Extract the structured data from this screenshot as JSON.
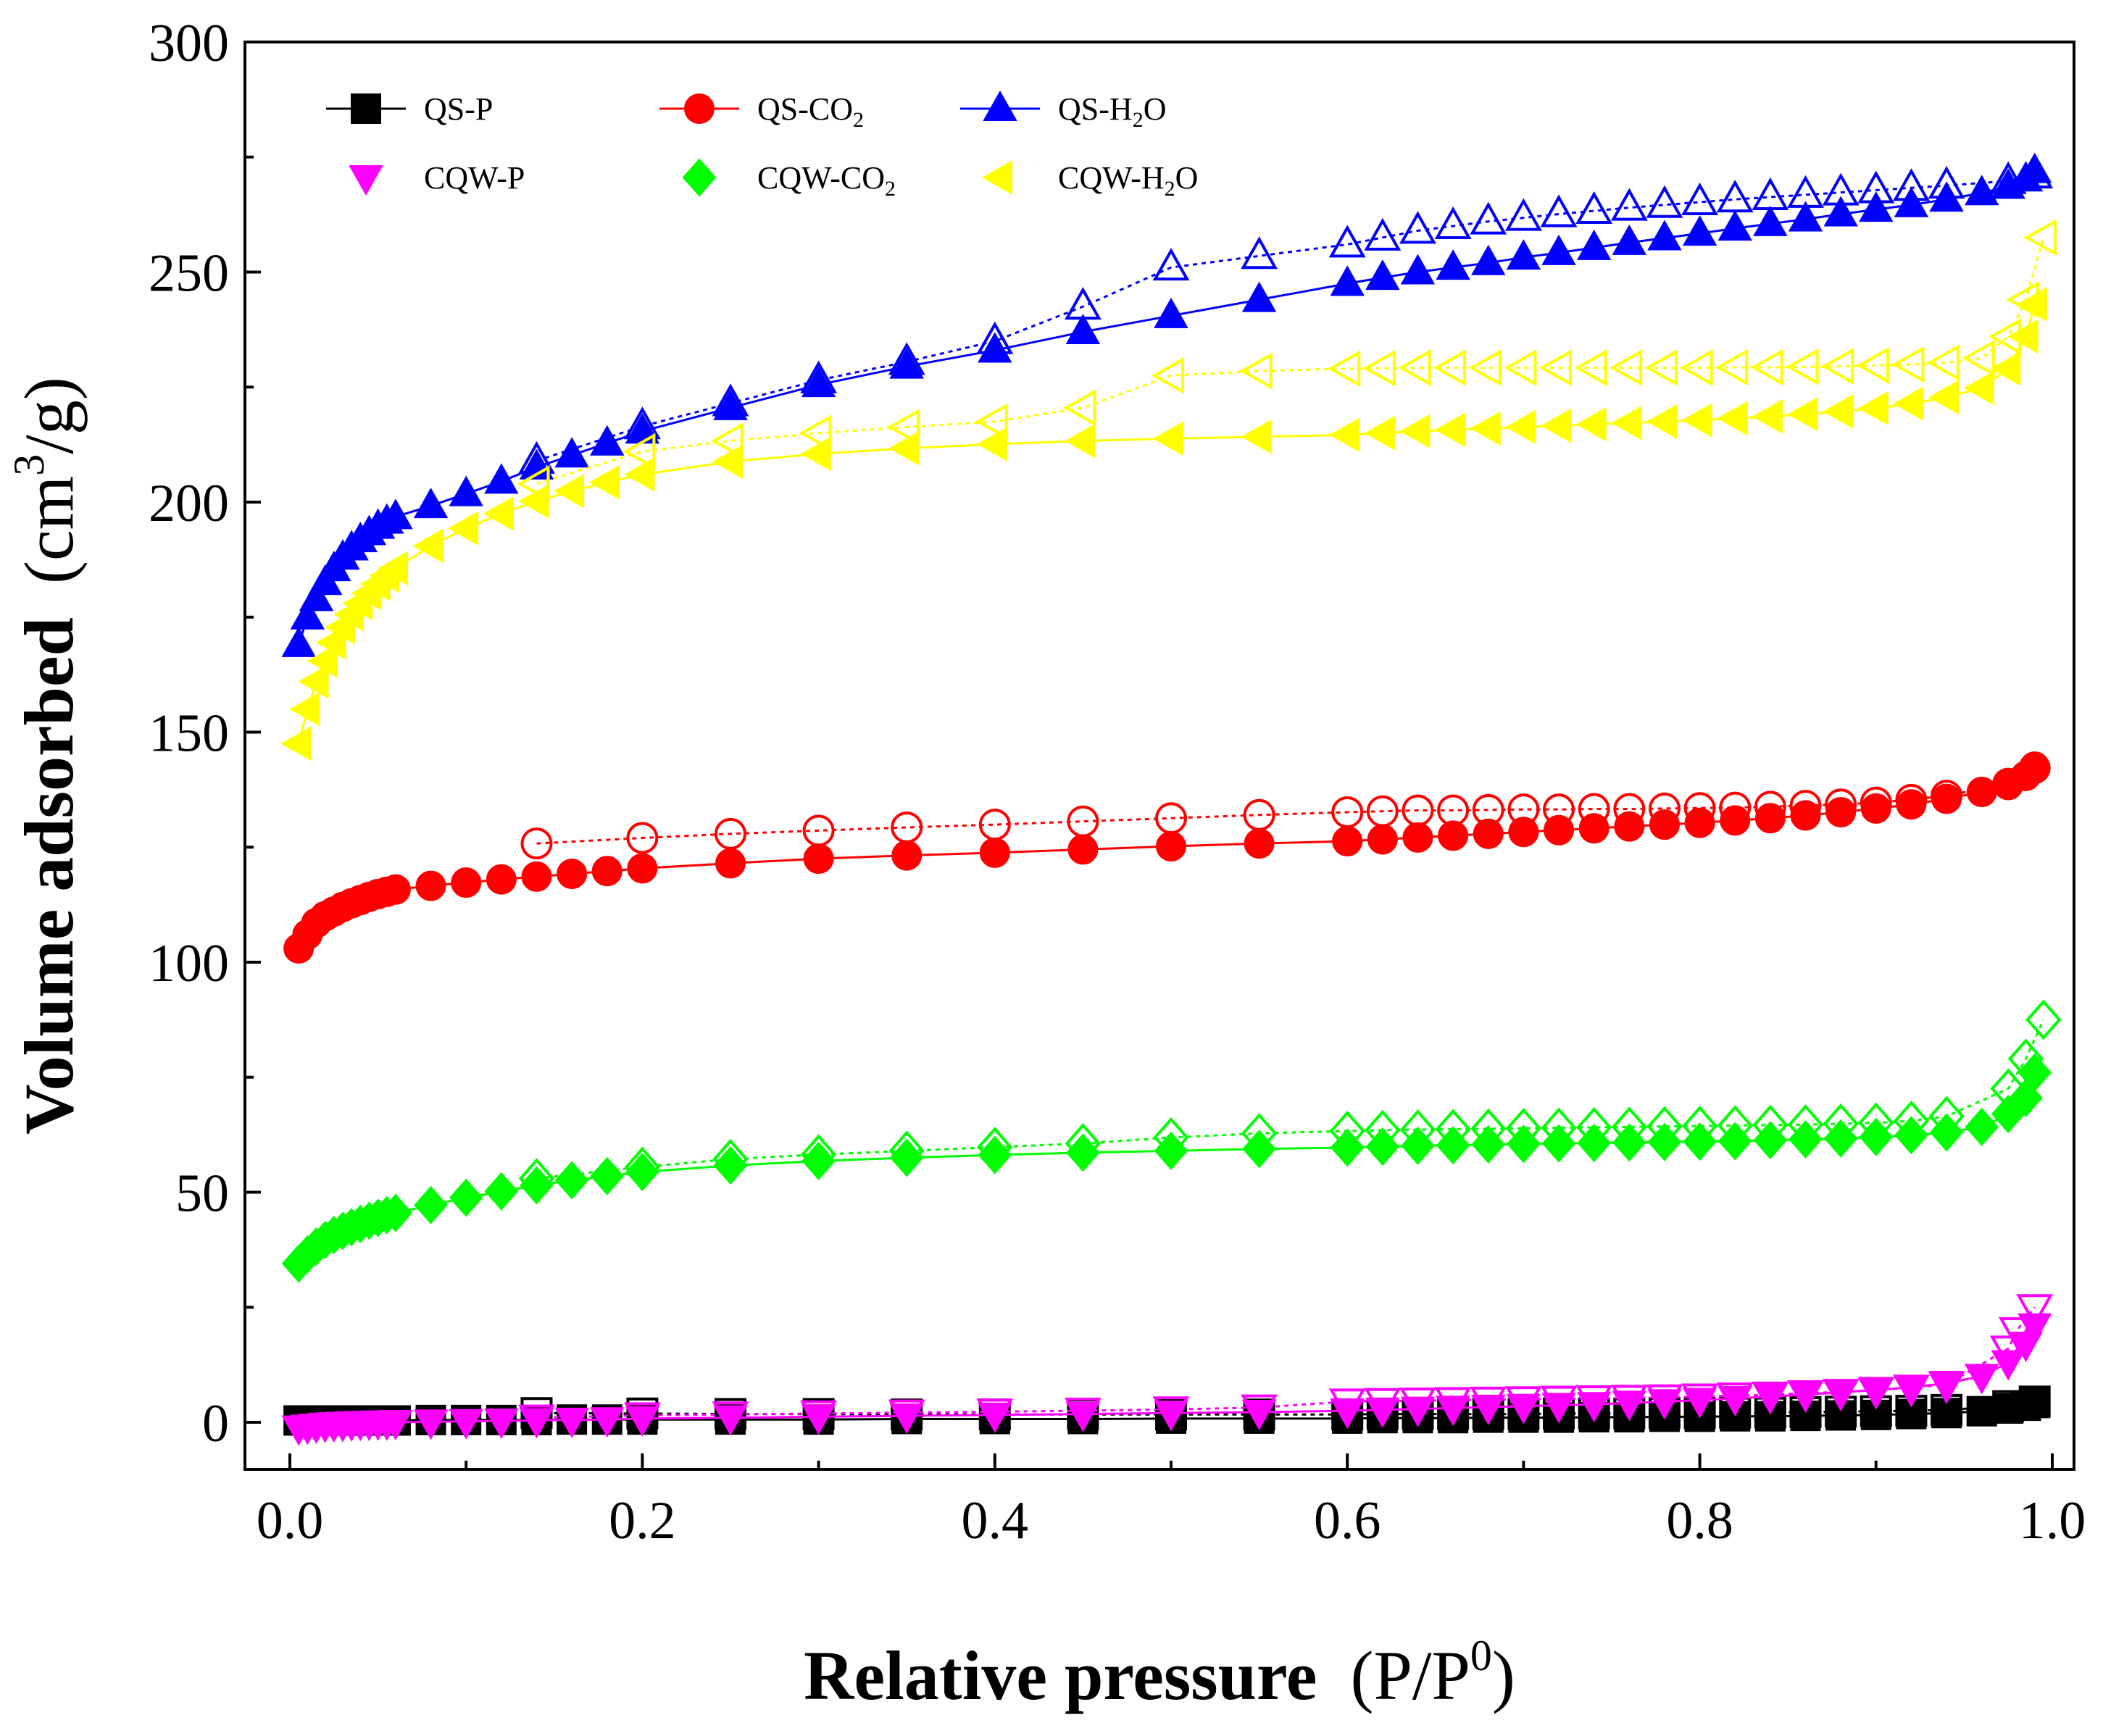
{
  "chart_data": {
    "type": "scatter",
    "title": "",
    "xlabel": {
      "main": "Relative pressure",
      "unit_prefix": "(P/P",
      "unit_sup": "0",
      "unit_suffix": ")"
    },
    "ylabel": {
      "main": "Volume adsorbed",
      "unit_prefix": "(cm",
      "unit_sup": "3",
      "unit_suffix": "/g)"
    },
    "xlim": [
      0.0,
      1.0
    ],
    "ylim": [
      0,
      300
    ],
    "xticks": [
      0.0,
      0.2,
      0.4,
      0.6,
      0.8,
      1.0
    ],
    "xtick_labels": [
      "0.0",
      "0.2",
      "0.4",
      "0.6",
      "0.8",
      "1.0"
    ],
    "yticks": [
      0,
      50,
      100,
      150,
      200,
      250,
      300
    ],
    "ytick_labels": [
      "0",
      "50",
      "100",
      "150",
      "200",
      "250",
      "300"
    ],
    "legend_position": "top-left",
    "legend": [
      {
        "label": "QS-P",
        "sub": "",
        "tail": "",
        "series": "QS-P"
      },
      {
        "label": "QS-CO",
        "sub": "2",
        "tail": "",
        "series": "QS-CO2"
      },
      {
        "label": "QS-H",
        "sub": "2",
        "tail": "O",
        "series": "QS-H2O"
      },
      {
        "label": "CQW-P",
        "sub": "",
        "tail": "",
        "series": "CQW-P"
      },
      {
        "label": "CQW-CO",
        "sub": "2",
        "tail": "",
        "series": "CQW-CO2"
      },
      {
        "label": "CQW-H",
        "sub": "2",
        "tail": "O",
        "series": "CQW-H2O"
      }
    ],
    "series": [
      {
        "name": "QS-P",
        "marker": "square",
        "color": "#000000",
        "adsorption": {
          "x": [
            0.005,
            0.01,
            0.015,
            0.02,
            0.025,
            0.03,
            0.035,
            0.04,
            0.045,
            0.05,
            0.055,
            0.06,
            0.08,
            0.1,
            0.12,
            0.14,
            0.16,
            0.18,
            0.2,
            0.25,
            0.3,
            0.35,
            0.4,
            0.45,
            0.5,
            0.55,
            0.6,
            0.62,
            0.64,
            0.66,
            0.68,
            0.7,
            0.72,
            0.74,
            0.76,
            0.78,
            0.8,
            0.82,
            0.84,
            0.86,
            0.88,
            0.9,
            0.92,
            0.94,
            0.96,
            0.975,
            0.985,
            0.99
          ],
          "y": [
            0.4,
            0.4,
            0.4,
            0.4,
            0.4,
            0.4,
            0.4,
            0.4,
            0.4,
            0.4,
            0.4,
            0.4,
            0.5,
            0.5,
            0.5,
            0.5,
            0.6,
            0.6,
            0.6,
            0.6,
            0.6,
            0.7,
            0.7,
            0.7,
            0.8,
            0.8,
            0.8,
            0.9,
            0.9,
            0.9,
            1.0,
            1.0,
            1.0,
            1.1,
            1.1,
            1.2,
            1.2,
            1.3,
            1.3,
            1.4,
            1.5,
            1.6,
            1.8,
            2.0,
            2.4,
            3.0,
            3.6,
            4.2
          ]
        },
        "desorption": {
          "x": [
            0.14,
            0.2,
            0.25,
            0.3,
            0.35,
            0.4,
            0.45,
            0.5,
            0.55,
            0.6,
            0.62,
            0.64,
            0.66,
            0.68,
            0.7,
            0.72,
            0.74,
            0.76,
            0.78,
            0.8,
            0.82,
            0.84,
            0.86,
            0.88,
            0.9,
            0.92,
            0.94,
            0.975,
            0.99
          ],
          "y": [
            2.0,
            1.9,
            1.8,
            1.8,
            1.7,
            1.7,
            1.7,
            1.7,
            1.7,
            1.7,
            1.8,
            1.8,
            1.8,
            1.8,
            1.8,
            1.9,
            1.9,
            1.9,
            2.0,
            2.0,
            2.1,
            2.1,
            2.2,
            2.3,
            2.4,
            2.5,
            2.7,
            3.5,
            4.5
          ]
        }
      },
      {
        "name": "QS-CO2",
        "marker": "circle",
        "color": "#ff0000",
        "adsorption": {
          "x": [
            0.005,
            0.01,
            0.015,
            0.02,
            0.025,
            0.03,
            0.035,
            0.04,
            0.045,
            0.05,
            0.055,
            0.06,
            0.08,
            0.1,
            0.12,
            0.14,
            0.16,
            0.18,
            0.2,
            0.25,
            0.3,
            0.35,
            0.4,
            0.45,
            0.5,
            0.55,
            0.6,
            0.62,
            0.64,
            0.66,
            0.68,
            0.7,
            0.72,
            0.74,
            0.76,
            0.78,
            0.8,
            0.82,
            0.84,
            0.86,
            0.88,
            0.9,
            0.92,
            0.94,
            0.96,
            0.975,
            0.985,
            0.99
          ],
          "y": [
            103,
            106,
            108.5,
            110,
            111,
            112,
            112.8,
            113.5,
            114.2,
            114.8,
            115.3,
            115.8,
            116.6,
            117.3,
            118,
            118.6,
            119.2,
            119.8,
            120.4,
            121.5,
            122.5,
            123.2,
            123.8,
            124.5,
            125.2,
            125.8,
            126.3,
            126.7,
            127.1,
            127.5,
            127.9,
            128.3,
            128.7,
            129.1,
            129.5,
            129.9,
            130.3,
            130.8,
            131.3,
            131.9,
            132.6,
            133.4,
            134.3,
            135.5,
            137,
            138.5,
            140.5,
            142.5
          ]
        },
        "desorption": {
          "x": [
            0.14,
            0.2,
            0.25,
            0.3,
            0.35,
            0.4,
            0.45,
            0.5,
            0.55,
            0.6,
            0.62,
            0.64,
            0.66,
            0.68,
            0.7,
            0.72,
            0.74,
            0.76,
            0.78,
            0.8,
            0.82,
            0.84,
            0.86,
            0.88,
            0.9,
            0.92,
            0.94,
            0.975,
            0.99
          ],
          "y": [
            125.8,
            127,
            127.9,
            128.6,
            129.3,
            129.9,
            130.6,
            131.3,
            132,
            132.6,
            132.8,
            133,
            133,
            133.1,
            133.2,
            133.2,
            133.3,
            133.3,
            133.4,
            133.5,
            133.6,
            133.8,
            134,
            134.3,
            134.7,
            135.3,
            136.2,
            138.8,
            142.2
          ]
        }
      },
      {
        "name": "QS-H2O",
        "marker": "triangle-up",
        "color": "#0000ff",
        "adsorption": {
          "x": [
            0.005,
            0.01,
            0.015,
            0.02,
            0.025,
            0.03,
            0.035,
            0.04,
            0.045,
            0.05,
            0.055,
            0.06,
            0.08,
            0.1,
            0.12,
            0.14,
            0.16,
            0.18,
            0.2,
            0.25,
            0.3,
            0.35,
            0.4,
            0.45,
            0.5,
            0.55,
            0.6,
            0.62,
            0.64,
            0.66,
            0.68,
            0.7,
            0.72,
            0.74,
            0.76,
            0.78,
            0.8,
            0.82,
            0.84,
            0.86,
            0.88,
            0.9,
            0.92,
            0.94,
            0.96,
            0.975,
            0.985,
            0.99
          ],
          "y": [
            169,
            175,
            179,
            182.5,
            185.5,
            188,
            190,
            191.8,
            193.3,
            194.7,
            195.8,
            196.8,
            199.2,
            201.8,
            204.5,
            207.6,
            210.2,
            212.8,
            215.4,
            220.5,
            225.5,
            229.5,
            233,
            237,
            240.5,
            244,
            247.5,
            248.8,
            250,
            251,
            252,
            253.2,
            254.2,
            255.3,
            256.4,
            257.4,
            258.4,
            259.5,
            260.5,
            261.5,
            262.6,
            263.6,
            264.6,
            265.8,
            267.2,
            268.6,
            270.2,
            272
          ]
        },
        "desorption": {
          "x": [
            0.14,
            0.2,
            0.25,
            0.3,
            0.35,
            0.4,
            0.45,
            0.5,
            0.55,
            0.6,
            0.62,
            0.64,
            0.66,
            0.68,
            0.7,
            0.72,
            0.74,
            0.76,
            0.78,
            0.8,
            0.82,
            0.84,
            0.86,
            0.88,
            0.9,
            0.92,
            0.94,
            0.975,
            0.99
          ],
          "y": [
            209,
            216.5,
            221.5,
            226.5,
            230.5,
            235,
            242.5,
            251,
            253.5,
            256,
            257.5,
            259,
            260,
            261,
            261.8,
            262.6,
            263.3,
            264,
            264.6,
            265.2,
            265.8,
            266.3,
            266.8,
            267.3,
            267.8,
            268.3,
            268.8,
            269.8,
            271
          ]
        }
      },
      {
        "name": "CQW-P",
        "marker": "triangle-down",
        "color": "#ff00ff",
        "adsorption": {
          "x": [
            0.005,
            0.01,
            0.015,
            0.02,
            0.025,
            0.03,
            0.035,
            0.04,
            0.045,
            0.05,
            0.055,
            0.06,
            0.08,
            0.1,
            0.12,
            0.14,
            0.16,
            0.18,
            0.2,
            0.25,
            0.3,
            0.35,
            0.4,
            0.45,
            0.5,
            0.55,
            0.6,
            0.62,
            0.64,
            0.66,
            0.68,
            0.7,
            0.72,
            0.74,
            0.76,
            0.78,
            0.8,
            0.82,
            0.84,
            0.86,
            0.88,
            0.9,
            0.92,
            0.94,
            0.96,
            0.975,
            0.985,
            0.99
          ],
          "y": [
            -1.2,
            -1.0,
            -0.8,
            -0.6,
            -0.5,
            -0.4,
            -0.3,
            -0.2,
            -0.2,
            -0.1,
            -0.1,
            0,
            0.1,
            0.2,
            0.3,
            0.4,
            0.5,
            0.6,
            0.8,
            1.0,
            1.2,
            1.4,
            1.6,
            1.8,
            2.0,
            2.2,
            2.5,
            2.7,
            2.9,
            3.1,
            3.3,
            3.5,
            3.7,
            3.9,
            4.2,
            4.5,
            4.8,
            5.2,
            5.6,
            6.0,
            6.5,
            7.0,
            7.6,
            8.5,
            10,
            13,
            17,
            21
          ]
        },
        "desorption": {
          "x": [
            0.14,
            0.2,
            0.25,
            0.3,
            0.35,
            0.4,
            0.45,
            0.5,
            0.55,
            0.6,
            0.62,
            0.64,
            0.66,
            0.68,
            0.7,
            0.72,
            0.74,
            0.76,
            0.78,
            0.8,
            0.82,
            0.84,
            0.86,
            0.88,
            0.9,
            0.92,
            0.94,
            0.975,
            0.98,
            0.99
          ],
          "y": [
            1.0,
            1.5,
            1.7,
            1.9,
            2.1,
            2.3,
            2.5,
            2.8,
            3.2,
            4.5,
            4.6,
            4.7,
            4.8,
            4.9,
            5.0,
            5.1,
            5.2,
            5.3,
            5.4,
            5.6,
            5.8,
            6.0,
            6.3,
            6.6,
            7.0,
            7.5,
            8.2,
            16,
            20,
            25
          ]
        }
      },
      {
        "name": "CQW-CO2",
        "marker": "diamond",
        "color": "#00ff00",
        "adsorption": {
          "x": [
            0.005,
            0.01,
            0.015,
            0.02,
            0.025,
            0.03,
            0.035,
            0.04,
            0.045,
            0.05,
            0.055,
            0.06,
            0.08,
            0.1,
            0.12,
            0.14,
            0.16,
            0.18,
            0.2,
            0.25,
            0.3,
            0.35,
            0.4,
            0.45,
            0.5,
            0.55,
            0.6,
            0.62,
            0.64,
            0.66,
            0.68,
            0.7,
            0.72,
            0.74,
            0.76,
            0.78,
            0.8,
            0.82,
            0.84,
            0.86,
            0.88,
            0.9,
            0.92,
            0.94,
            0.96,
            0.975,
            0.985,
            0.99
          ],
          "y": [
            34.5,
            36.5,
            38.2,
            39.6,
            40.7,
            41.6,
            42.4,
            43.1,
            43.8,
            44.4,
            45,
            45.5,
            47.2,
            48.8,
            50.2,
            51.5,
            52.6,
            53.5,
            54.4,
            55.8,
            56.8,
            57.5,
            58.1,
            58.6,
            59,
            59.4,
            59.7,
            59.9,
            60.1,
            60.2,
            60.4,
            60.5,
            60.6,
            60.7,
            60.8,
            60.9,
            61,
            61.1,
            61.3,
            61.5,
            61.7,
            62,
            62.4,
            63,
            64.2,
            67,
            70.5,
            76
          ]
        },
        "desorption": {
          "x": [
            0.14,
            0.2,
            0.25,
            0.3,
            0.35,
            0.4,
            0.45,
            0.5,
            0.55,
            0.6,
            0.62,
            0.64,
            0.66,
            0.68,
            0.7,
            0.72,
            0.74,
            0.76,
            0.78,
            0.8,
            0.82,
            0.84,
            0.86,
            0.88,
            0.9,
            0.92,
            0.94,
            0.975,
            0.985,
            0.995
          ],
          "y": [
            53,
            55.5,
            57.2,
            58.2,
            59,
            59.8,
            60.6,
            61.9,
            62.8,
            63.3,
            63.5,
            63.6,
            63.7,
            63.8,
            63.9,
            64,
            64.1,
            64.2,
            64.3,
            64.4,
            64.5,
            64.6,
            64.7,
            64.9,
            65.1,
            65.5,
            66.5,
            72.5,
            79,
            87.5
          ]
        }
      },
      {
        "name": "CQW-H2O",
        "marker": "triangle-left",
        "color": "#ffff00",
        "adsorption": {
          "x": [
            0.005,
            0.01,
            0.015,
            0.02,
            0.025,
            0.03,
            0.035,
            0.04,
            0.045,
            0.05,
            0.055,
            0.06,
            0.08,
            0.1,
            0.12,
            0.14,
            0.16,
            0.18,
            0.2,
            0.25,
            0.3,
            0.35,
            0.4,
            0.45,
            0.5,
            0.55,
            0.6,
            0.62,
            0.64,
            0.66,
            0.68,
            0.7,
            0.72,
            0.74,
            0.76,
            0.78,
            0.8,
            0.82,
            0.84,
            0.86,
            0.88,
            0.9,
            0.92,
            0.94,
            0.96,
            0.975,
            0.985,
            0.99
          ],
          "y": [
            147.5,
            155,
            161,
            165.5,
            169.5,
            172.8,
            175.6,
            178,
            180.2,
            182.2,
            184,
            185.6,
            190.5,
            194.3,
            197.5,
            200.2,
            202.4,
            204.3,
            206,
            208.8,
            210.5,
            211.7,
            212.6,
            213.3,
            213.8,
            214.2,
            214.6,
            215,
            215.4,
            215.7,
            216,
            216.3,
            216.6,
            216.9,
            217.2,
            217.5,
            217.8,
            218.2,
            218.6,
            219.1,
            219.7,
            220.4,
            221.4,
            222.8,
            224.8,
            229,
            236,
            243
          ]
        },
        "desorption": {
          "x": [
            0.14,
            0.2,
            0.25,
            0.3,
            0.35,
            0.4,
            0.45,
            0.5,
            0.55,
            0.6,
            0.62,
            0.64,
            0.66,
            0.68,
            0.7,
            0.72,
            0.74,
            0.76,
            0.78,
            0.8,
            0.82,
            0.84,
            0.86,
            0.88,
            0.9,
            0.92,
            0.94,
            0.96,
            0.975,
            0.985,
            0.995
          ],
          "y": [
            204,
            211,
            213.3,
            215,
            216.3,
            217.5,
            220.5,
            227.5,
            228.5,
            229,
            229.1,
            229.2,
            229.2,
            229.2,
            229.2,
            229.2,
            229.2,
            229.2,
            229.2,
            229.2,
            229.3,
            229.3,
            229.4,
            229.5,
            229.7,
            229.9,
            230.3,
            231.3,
            236,
            244,
            257.5
          ]
        }
      }
    ]
  }
}
